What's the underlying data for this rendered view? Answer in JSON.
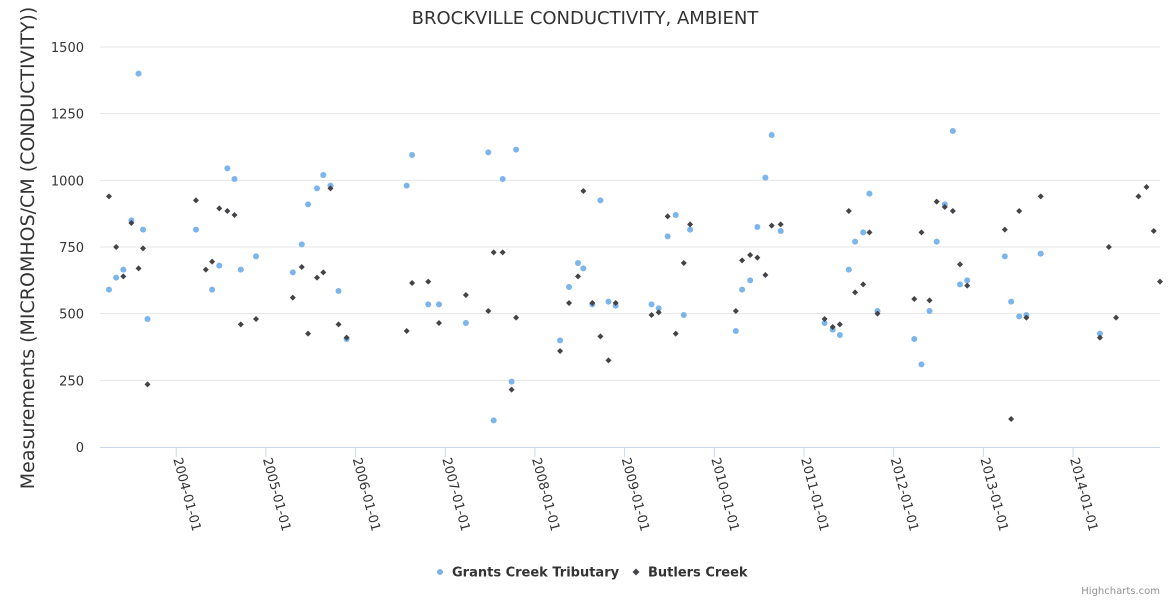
{
  "chart_data": {
    "type": "scatter",
    "title": "BROCKVILLE CONDUCTIVITY, AMBIENT",
    "xlabel": "",
    "ylabel": "Measurements (MICROMHOS/CM (CONDUCTIVITY))",
    "ylim": [
      0,
      1500
    ],
    "yticks": [
      0,
      250,
      500,
      750,
      1000,
      1250,
      1500
    ],
    "xlim": [
      2003.15,
      2014.97
    ],
    "xticks": [
      {
        "value": 2004,
        "label": "2004-01-01"
      },
      {
        "value": 2005,
        "label": "2005-01-01"
      },
      {
        "value": 2006,
        "label": "2006-01-01"
      },
      {
        "value": 2007,
        "label": "2007-01-01"
      },
      {
        "value": 2008,
        "label": "2008-01-01"
      },
      {
        "value": 2009,
        "label": "2009-01-01"
      },
      {
        "value": 2010,
        "label": "2010-01-01"
      },
      {
        "value": 2011,
        "label": "2011-01-01"
      },
      {
        "value": 2012,
        "label": "2012-01-01"
      },
      {
        "value": 2013,
        "label": "2013-01-01"
      },
      {
        "value": 2014,
        "label": "2014-01-01"
      }
    ],
    "grid": true,
    "legend_position": "bottom-center",
    "series": [
      {
        "name": "Grants Creek Tributary",
        "marker": "circle",
        "color": "#7cb5ec",
        "points": [
          [
            2003.25,
            590
          ],
          [
            2003.33,
            635
          ],
          [
            2003.41,
            665
          ],
          [
            2003.5,
            850
          ],
          [
            2003.58,
            1400
          ],
          [
            2003.63,
            815
          ],
          [
            2003.68,
            480
          ],
          [
            2004.22,
            815
          ],
          [
            2004.4,
            590
          ],
          [
            2004.48,
            680
          ],
          [
            2004.57,
            1045
          ],
          [
            2004.65,
            1005
          ],
          [
            2004.72,
            665
          ],
          [
            2004.89,
            715
          ],
          [
            2005.3,
            655
          ],
          [
            2005.4,
            760
          ],
          [
            2005.47,
            910
          ],
          [
            2005.57,
            970
          ],
          [
            2005.64,
            1020
          ],
          [
            2005.72,
            980
          ],
          [
            2005.81,
            585
          ],
          [
            2005.9,
            405
          ],
          [
            2006.57,
            980
          ],
          [
            2006.63,
            1095
          ],
          [
            2006.81,
            535
          ],
          [
            2006.93,
            535
          ],
          [
            2007.23,
            465
          ],
          [
            2007.48,
            1105
          ],
          [
            2007.54,
            100
          ],
          [
            2007.64,
            1005
          ],
          [
            2007.74,
            245
          ],
          [
            2007.79,
            1115
          ],
          [
            2008.28,
            400
          ],
          [
            2008.38,
            600
          ],
          [
            2008.48,
            690
          ],
          [
            2008.54,
            670
          ],
          [
            2008.64,
            535
          ],
          [
            2008.73,
            925
          ],
          [
            2008.82,
            545
          ],
          [
            2008.9,
            530
          ],
          [
            2009.3,
            535
          ],
          [
            2009.38,
            520
          ],
          [
            2009.48,
            790
          ],
          [
            2009.57,
            870
          ],
          [
            2009.66,
            495
          ],
          [
            2009.73,
            815
          ],
          [
            2010.24,
            435
          ],
          [
            2010.31,
            590
          ],
          [
            2010.4,
            625
          ],
          [
            2010.48,
            825
          ],
          [
            2010.57,
            1010
          ],
          [
            2010.64,
            1170
          ],
          [
            2010.74,
            810
          ],
          [
            2011.23,
            465
          ],
          [
            2011.32,
            440
          ],
          [
            2011.4,
            420
          ],
          [
            2011.5,
            665
          ],
          [
            2011.57,
            770
          ],
          [
            2011.66,
            805
          ],
          [
            2011.73,
            950
          ],
          [
            2011.82,
            510
          ],
          [
            2012.23,
            405
          ],
          [
            2012.31,
            310
          ],
          [
            2012.4,
            510
          ],
          [
            2012.48,
            770
          ],
          [
            2012.57,
            910
          ],
          [
            2012.66,
            1185
          ],
          [
            2012.74,
            610
          ],
          [
            2012.82,
            625
          ],
          [
            2013.24,
            715
          ],
          [
            2013.31,
            545
          ],
          [
            2013.4,
            490
          ],
          [
            2013.48,
            495
          ],
          [
            2013.64,
            725
          ],
          [
            2014.3,
            425
          ]
        ]
      },
      {
        "name": "Butlers Creek",
        "marker": "diamond",
        "color": "#434348",
        "points": [
          [
            2003.25,
            940
          ],
          [
            2003.33,
            750
          ],
          [
            2003.41,
            640
          ],
          [
            2003.5,
            840
          ],
          [
            2003.58,
            670
          ],
          [
            2003.63,
            745
          ],
          [
            2003.68,
            235
          ],
          [
            2004.22,
            925
          ],
          [
            2004.33,
            665
          ],
          [
            2004.4,
            695
          ],
          [
            2004.48,
            895
          ],
          [
            2004.57,
            885
          ],
          [
            2004.65,
            870
          ],
          [
            2004.72,
            460
          ],
          [
            2004.89,
            480
          ],
          [
            2005.3,
            560
          ],
          [
            2005.4,
            675
          ],
          [
            2005.47,
            425
          ],
          [
            2005.57,
            635
          ],
          [
            2005.64,
            655
          ],
          [
            2005.72,
            970
          ],
          [
            2005.81,
            460
          ],
          [
            2005.9,
            410
          ],
          [
            2006.57,
            435
          ],
          [
            2006.63,
            615
          ],
          [
            2006.81,
            620
          ],
          [
            2006.93,
            465
          ],
          [
            2007.23,
            570
          ],
          [
            2007.48,
            510
          ],
          [
            2007.54,
            730
          ],
          [
            2007.64,
            730
          ],
          [
            2007.74,
            215
          ],
          [
            2007.79,
            485
          ],
          [
            2008.28,
            360
          ],
          [
            2008.38,
            540
          ],
          [
            2008.48,
            640
          ],
          [
            2008.54,
            960
          ],
          [
            2008.64,
            540
          ],
          [
            2008.73,
            415
          ],
          [
            2008.82,
            325
          ],
          [
            2008.9,
            540
          ],
          [
            2009.3,
            495
          ],
          [
            2009.38,
            505
          ],
          [
            2009.48,
            865
          ],
          [
            2009.57,
            425
          ],
          [
            2009.66,
            690
          ],
          [
            2009.73,
            835
          ],
          [
            2010.24,
            510
          ],
          [
            2010.31,
            700
          ],
          [
            2010.4,
            720
          ],
          [
            2010.48,
            710
          ],
          [
            2010.57,
            645
          ],
          [
            2010.64,
            830
          ],
          [
            2010.74,
            835
          ],
          [
            2011.23,
            480
          ],
          [
            2011.32,
            450
          ],
          [
            2011.4,
            460
          ],
          [
            2011.5,
            885
          ],
          [
            2011.57,
            580
          ],
          [
            2011.66,
            610
          ],
          [
            2011.73,
            805
          ],
          [
            2011.82,
            500
          ],
          [
            2012.23,
            555
          ],
          [
            2012.31,
            805
          ],
          [
            2012.4,
            550
          ],
          [
            2012.48,
            920
          ],
          [
            2012.57,
            900
          ],
          [
            2012.66,
            885
          ],
          [
            2012.74,
            685
          ],
          [
            2012.82,
            605
          ],
          [
            2013.24,
            815
          ],
          [
            2013.31,
            105
          ],
          [
            2013.4,
            885
          ],
          [
            2013.48,
            485
          ],
          [
            2013.64,
            940
          ],
          [
            2014.3,
            410
          ],
          [
            2014.4,
            750
          ],
          [
            2014.48,
            485
          ],
          [
            2014.73,
            940
          ],
          [
            2014.82,
            975
          ],
          [
            2014.9,
            810
          ],
          [
            2014.97,
            620
          ]
        ]
      }
    ]
  },
  "credits": "Highcharts.com"
}
